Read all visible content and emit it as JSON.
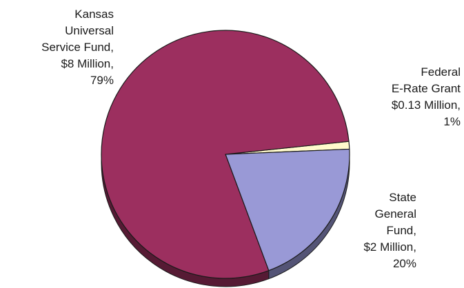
{
  "chart_data": {
    "type": "pie",
    "title": "",
    "slices": [
      {
        "name": "Kansas Universal Service Fund",
        "amount": "$8 Million",
        "value": 79,
        "percent_label": "79%",
        "color": "#9c2f5f",
        "label_lines": [
          "Kansas",
          "Universal",
          "Service Fund,",
          "$8 Million,",
          "79%"
        ]
      },
      {
        "name": "Federal E-Rate Grant",
        "amount": "$0.13 Million",
        "value": 1,
        "percent_label": "1%",
        "color": "#fffacc",
        "label_lines": [
          "Federal",
          "E-Rate Grant",
          "$0.13 Million,",
          "1%"
        ]
      },
      {
        "name": "State General Fund",
        "amount": "$2 Million",
        "value": 20,
        "percent_label": "20%",
        "color": "#9999d6",
        "label_lines": [
          "State",
          "General",
          "Fund,",
          "$2 Million,",
          "20%"
        ]
      }
    ],
    "style": "3d",
    "legend": "none"
  }
}
